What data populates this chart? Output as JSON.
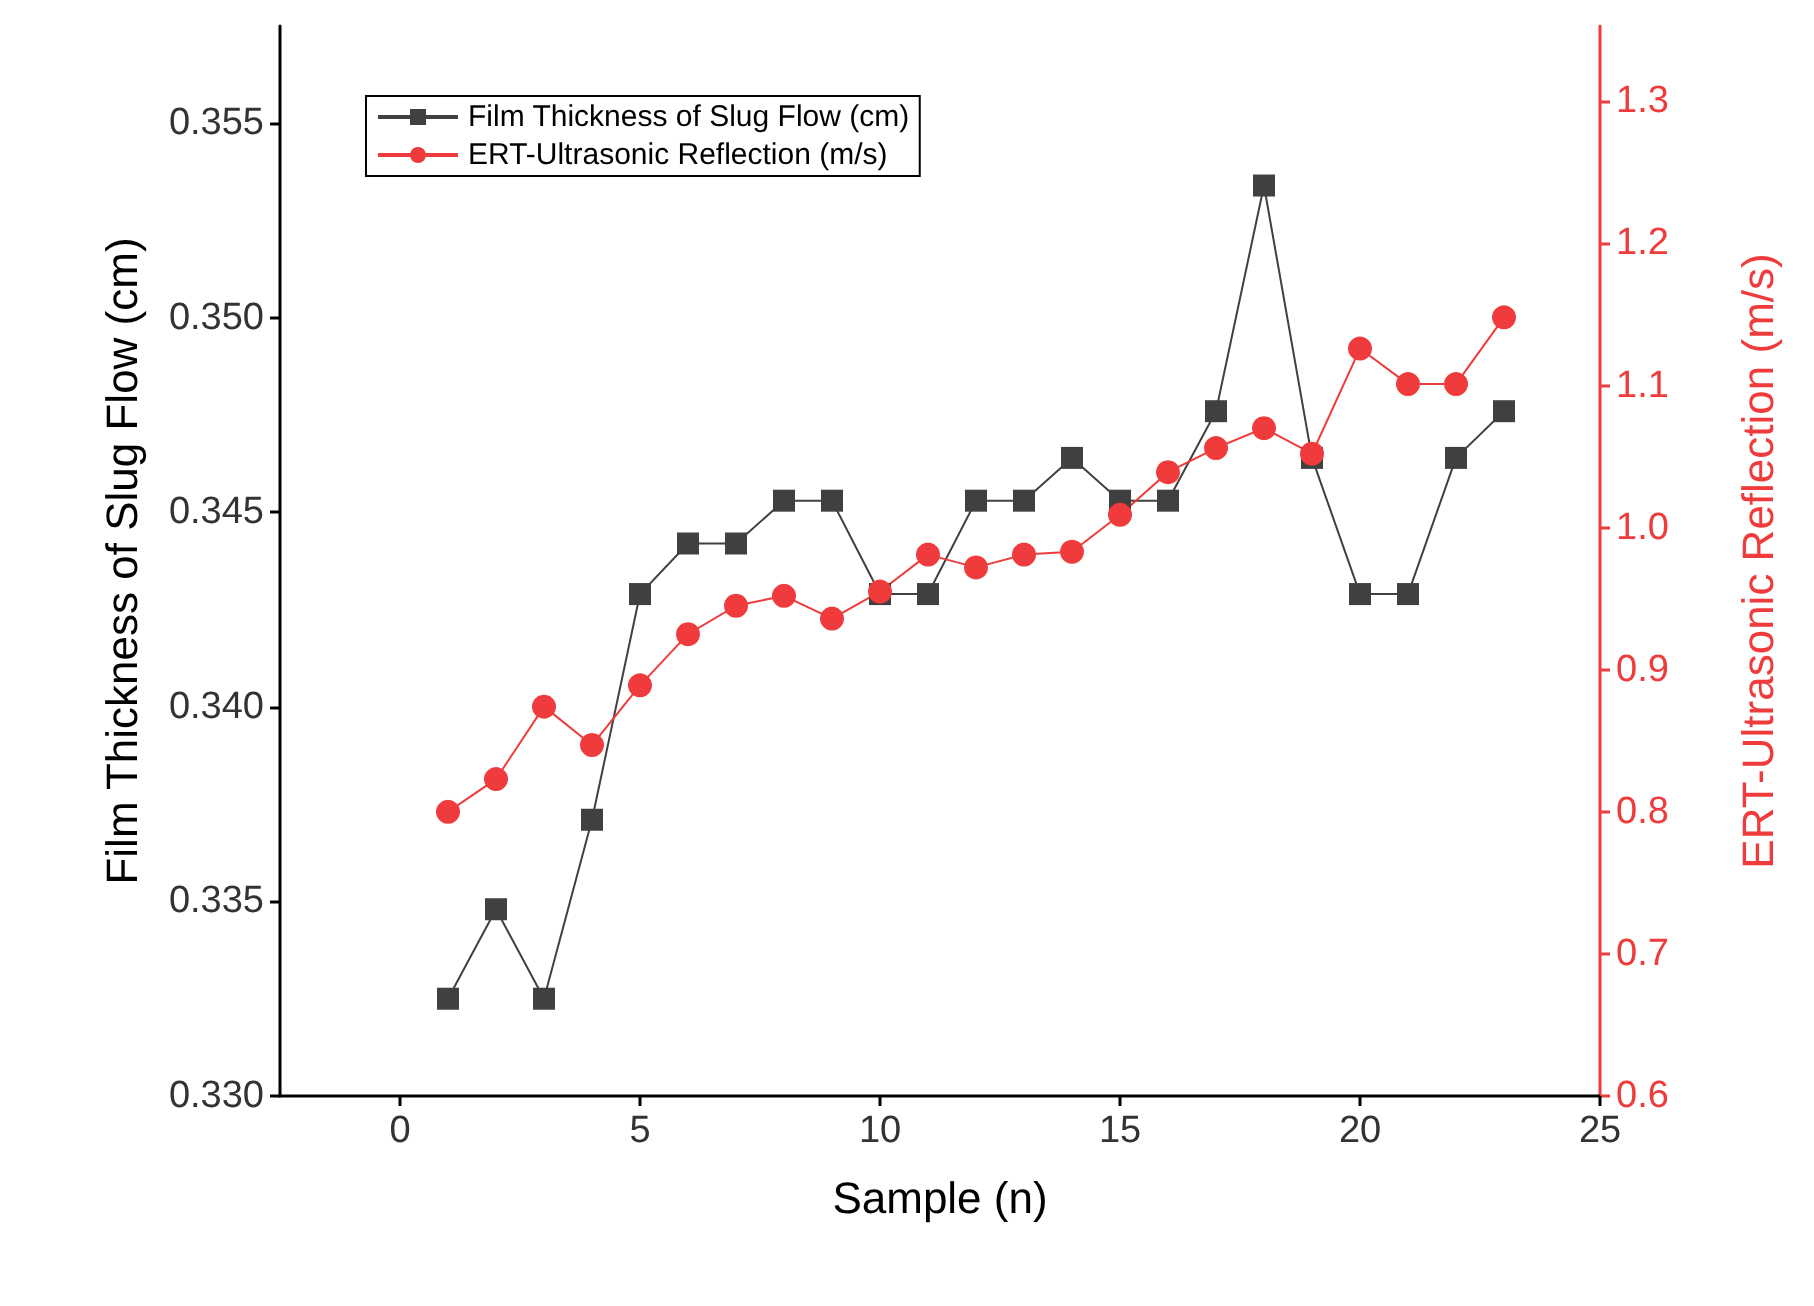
{
  "chart_data": {
    "type": "line",
    "xlabel": "Sample (n)",
    "ylabel": "Film Thickness of Slug Flow (cm)",
    "y2label": "ERT-Ultrasonic Reflection (m/s)",
    "x": [
      1,
      2,
      3,
      4,
      5,
      6,
      7,
      8,
      9,
      10,
      11,
      12,
      13,
      14,
      15,
      16,
      17,
      18,
      19,
      20,
      21,
      22,
      23
    ],
    "series": [
      {
        "name": "Film Thickness of Slug Flow (cm)",
        "color": "#404040",
        "marker": "square",
        "values": [
          0.3325,
          0.3348,
          0.3325,
          0.3371,
          0.3429,
          0.3442,
          0.3442,
          0.3453,
          0.3453,
          0.3429,
          0.3429,
          0.3453,
          0.3453,
          0.3464,
          0.3453,
          0.3453,
          0.3476,
          0.3534,
          0.3464,
          0.3429,
          0.3429,
          0.3464,
          0.3476
        ]
      },
      {
        "name": "ERT-Ultrasonic Reflection (m/s)",
        "color": "#ef3b3b",
        "marker": "circle",
        "axis": "y2",
        "values": [
          0.8,
          0.823,
          0.874,
          0.847,
          0.889,
          0.925,
          0.945,
          0.952,
          0.936,
          0.955,
          0.981,
          0.972,
          0.981,
          0.983,
          1.009,
          1.039,
          1.056,
          1.07,
          1.052,
          1.126,
          1.101,
          1.101,
          1.148
        ]
      }
    ],
    "xlim": [
      -2.5,
      25
    ],
    "xticks": [
      0,
      5,
      10,
      15,
      20,
      25
    ],
    "ylim": [
      0.33,
      0.3575
    ],
    "yticks": [
      {
        "value": 0.33,
        "label": "0.330"
      },
      {
        "value": 0.335,
        "label": "0.335"
      },
      {
        "value": 0.34,
        "label": "0.340"
      },
      {
        "value": 0.345,
        "label": "0.345"
      },
      {
        "value": 0.35,
        "label": "0.350"
      },
      {
        "value": 0.355,
        "label": "0.355"
      }
    ],
    "y2lim": [
      0.6,
      1.353
    ],
    "y2ticks": [
      {
        "value": 0.6,
        "label": "0.6"
      },
      {
        "value": 0.7,
        "label": "0.7"
      },
      {
        "value": 0.8,
        "label": "0.8"
      },
      {
        "value": 0.9,
        "label": "0.9"
      },
      {
        "value": 1.0,
        "label": "1.0"
      },
      {
        "value": 1.1,
        "label": "1.1"
      },
      {
        "value": 1.2,
        "label": "1.2"
      },
      {
        "value": 1.3,
        "label": "1.3"
      }
    ],
    "grid": false,
    "legend": "top left",
    "line_style": "solid"
  }
}
